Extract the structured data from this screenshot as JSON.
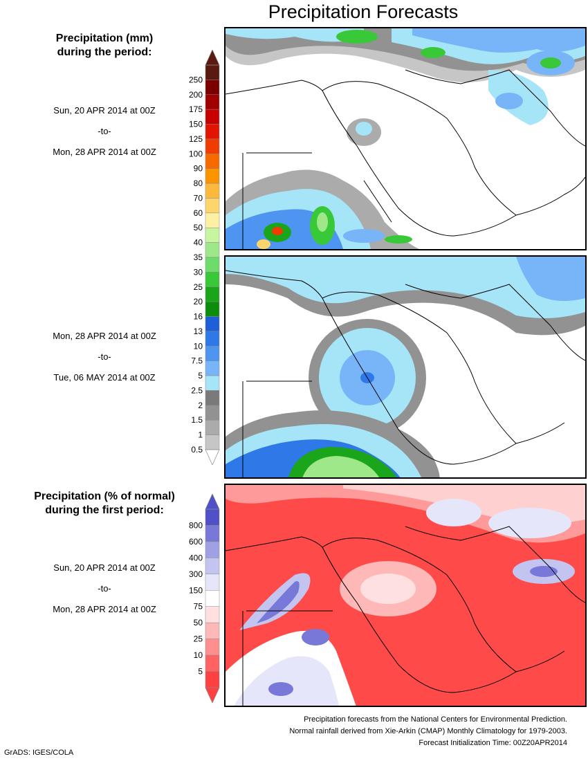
{
  "title": "Precipitation Forecasts",
  "panel1": {
    "heading_line1": "Precipitation (mm)",
    "heading_line2": "during the period:",
    "start": "Sun, 20 APR 2014 at 00Z",
    "to": "-to-",
    "end": "Mon, 28 APR 2014 at 00Z"
  },
  "panel2": {
    "start": "Mon, 28 APR 2014 at 00Z",
    "to": "-to-",
    "end": "Tue, 06 MAY 2014 at 00Z"
  },
  "panel3": {
    "heading_line1": "Precipitation (% of normal)",
    "heading_line2": "during the first period:",
    "start": "Sun, 20 APR 2014 at 00Z",
    "to": "-to-",
    "end": "Mon, 28 APR 2014 at 00Z"
  },
  "legend_mm": {
    "ticks": [
      "250",
      "200",
      "175",
      "150",
      "125",
      "100",
      "90",
      "80",
      "70",
      "60",
      "50",
      "40",
      "35",
      "30",
      "25",
      "20",
      "16",
      "13",
      "10",
      "7.5",
      "5",
      "2.5",
      "2",
      "1.5",
      "1",
      "0.5"
    ],
    "colors": [
      "#5a1a10",
      "#7a0000",
      "#a00000",
      "#c80000",
      "#e21600",
      "#f03c00",
      "#f86a00",
      "#fc9400",
      "#fdb93c",
      "#fdd56c",
      "#fef0a2",
      "#c8f5a0",
      "#9ee88a",
      "#6ddc6a",
      "#38c838",
      "#1aa51a",
      "#0c8e0c",
      "#1e5ed8",
      "#2e78e8",
      "#4d95f0",
      "#78b4f8",
      "#a6e4f8",
      "#7a7a7a",
      "#929292",
      "#ababab",
      "#c6c6c6"
    ]
  },
  "legend_pct": {
    "ticks": [
      "800",
      "600",
      "400",
      "300",
      "150",
      "75",
      "50",
      "25",
      "10",
      "5"
    ],
    "colors": [
      "#5050c8",
      "#7878d8",
      "#a0a0e4",
      "#c4c4f0",
      "#e6e6fa",
      "#ffffff",
      "#ffe0e0",
      "#ffb8b8",
      "#ff8e8e",
      "#ff6262",
      "#ff4040"
    ]
  },
  "footer": {
    "line1": "Precipitation forecasts from the National Centers for Environmental Prediction.",
    "line2": "Normal rainfall derived from Xie-Arkin (CMAP) Monthly Climatology for 1979-2003.",
    "line3": "Forecast Initialization Time: 00Z20APR2014"
  },
  "credit": "GrADS: IGES/COLA"
}
